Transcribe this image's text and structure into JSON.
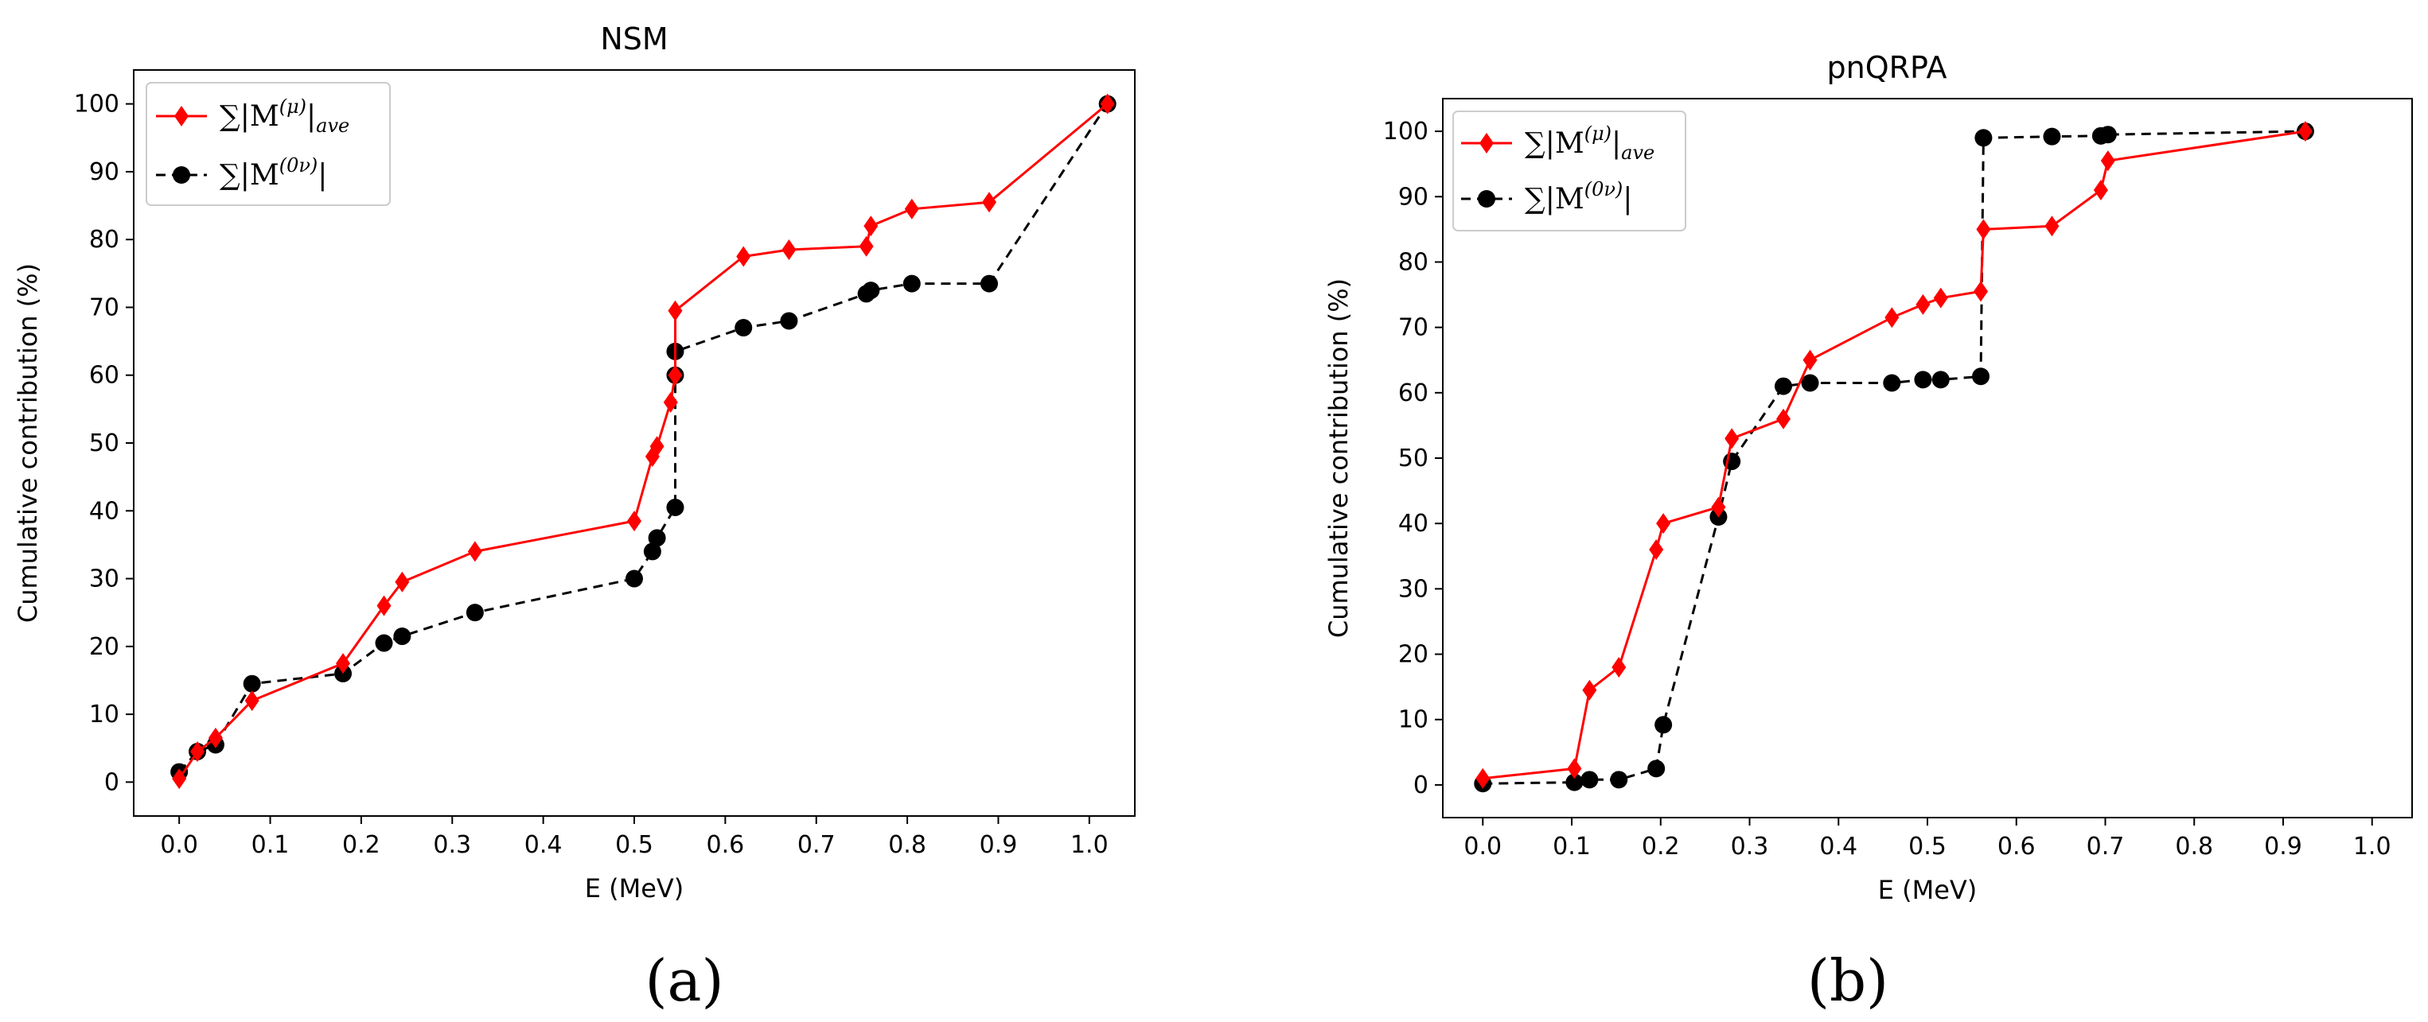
{
  "chart_data": [
    {
      "type": "line",
      "title": "NSM",
      "xlabel": "E (MeV)",
      "ylabel": "Cumulative contribution (%)",
      "caption": "(a)",
      "xlim": [
        -0.05,
        1.05
      ],
      "ylim": [
        -5,
        105
      ],
      "xticks": [
        "0.0",
        "0.1",
        "0.2",
        "0.3",
        "0.4",
        "0.5",
        "0.6",
        "0.7",
        "0.8",
        "0.9",
        "1.0"
      ],
      "xtick_values": [
        0.0,
        0.1,
        0.2,
        0.3,
        0.4,
        0.5,
        0.6,
        0.7,
        0.8,
        0.9,
        1.0
      ],
      "yticks": [
        "0",
        "10",
        "20",
        "30",
        "40",
        "50",
        "60",
        "70",
        "80",
        "90",
        "100"
      ],
      "ytick_values": [
        0,
        10,
        20,
        30,
        40,
        50,
        60,
        70,
        80,
        90,
        100
      ],
      "legend_position": "top-left",
      "series": [
        {
          "name": "∑|M(μ)|ave",
          "legend_main": "∑|M",
          "legend_sup": "(μ)",
          "legend_tail": "|",
          "legend_sub": "ave",
          "color": "#ff0000",
          "marker": "diamond",
          "linestyle": "solid",
          "x": [
            0.0,
            0.02,
            0.04,
            0.08,
            0.18,
            0.225,
            0.245,
            0.325,
            0.5,
            0.52,
            0.525,
            0.54,
            0.545,
            0.545,
            0.62,
            0.67,
            0.755,
            0.76,
            0.805,
            0.89,
            1.02
          ],
          "y": [
            0.5,
            4.5,
            6.5,
            12,
            17.5,
            26,
            29.5,
            34,
            38.5,
            48,
            49.5,
            56,
            60,
            69.5,
            77.5,
            78.5,
            79,
            82,
            84.5,
            85.5,
            100
          ]
        },
        {
          "name": "∑|M(0ν)|",
          "legend_main": "∑|M",
          "legend_sup": "(0ν)",
          "legend_tail": "|",
          "legend_sub": "",
          "color": "#000000",
          "marker": "circle",
          "linestyle": "dashed",
          "x": [
            0.0,
            0.02,
            0.04,
            0.08,
            0.18,
            0.225,
            0.245,
            0.325,
            0.5,
            0.52,
            0.525,
            0.545,
            0.545,
            0.545,
            0.62,
            0.67,
            0.755,
            0.76,
            0.805,
            0.89,
            1.02
          ],
          "y": [
            1.5,
            4.5,
            5.5,
            14.5,
            16,
            20.5,
            21.5,
            25,
            30,
            34,
            36,
            40.5,
            60,
            63.5,
            67,
            68,
            72,
            72.5,
            73.5,
            73.5,
            100
          ]
        }
      ]
    },
    {
      "type": "line",
      "title": "pnQRPA",
      "xlabel": "E (MeV)",
      "ylabel": "Cumulative contribution (%)",
      "caption": "(b)",
      "xlim": [
        -0.045,
        1.045
      ],
      "ylim": [
        -5,
        105
      ],
      "xticks": [
        "0.0",
        "0.1",
        "0.2",
        "0.3",
        "0.4",
        "0.5",
        "0.6",
        "0.7",
        "0.8",
        "0.9",
        "1.0"
      ],
      "xtick_values": [
        0.0,
        0.1,
        0.2,
        0.3,
        0.4,
        0.5,
        0.6,
        0.7,
        0.8,
        0.9,
        1.0
      ],
      "yticks": [
        "0",
        "10",
        "20",
        "30",
        "40",
        "50",
        "60",
        "70",
        "80",
        "90",
        "100"
      ],
      "ytick_values": [
        0,
        10,
        20,
        30,
        40,
        50,
        60,
        70,
        80,
        90,
        100
      ],
      "legend_position": "top-left",
      "series": [
        {
          "name": "∑|M(μ)|ave",
          "legend_main": "∑|M",
          "legend_sup": "(μ)",
          "legend_tail": "|",
          "legend_sub": "ave",
          "color": "#ff0000",
          "marker": "diamond",
          "linestyle": "solid",
          "x": [
            0.0,
            0.103,
            0.12,
            0.153,
            0.195,
            0.203,
            0.265,
            0.28,
            0.338,
            0.368,
            0.46,
            0.495,
            0.515,
            0.56,
            0.563,
            0.64,
            0.695,
            0.703,
            0.925
          ],
          "y": [
            1,
            2.5,
            14.5,
            18,
            36,
            40,
            42.5,
            53,
            56,
            65,
            71.5,
            73.5,
            74.5,
            75.5,
            85,
            85.5,
            91,
            95.5,
            100
          ]
        },
        {
          "name": "∑|M(0ν)|",
          "legend_main": "∑|M",
          "legend_sup": "(0ν)",
          "legend_tail": "|",
          "legend_sub": "",
          "color": "#000000",
          "marker": "circle",
          "linestyle": "dashed",
          "x": [
            0.0,
            0.103,
            0.12,
            0.153,
            0.195,
            0.203,
            0.265,
            0.28,
            0.338,
            0.368,
            0.46,
            0.495,
            0.515,
            0.56,
            0.563,
            0.64,
            0.695,
            0.703,
            0.925
          ],
          "y": [
            0.2,
            0.4,
            0.8,
            0.8,
            2.5,
            9.2,
            41,
            49.5,
            61,
            61.5,
            61.5,
            62,
            62,
            62.5,
            99,
            99.2,
            99.3,
            99.5,
            100
          ]
        }
      ]
    }
  ]
}
